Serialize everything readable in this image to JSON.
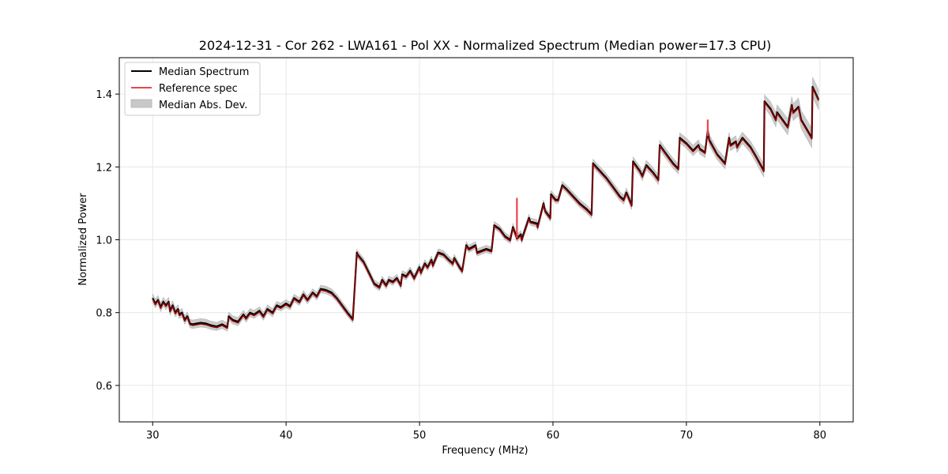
{
  "chart_data": {
    "type": "line",
    "title": "2024-12-31 - Cor 262 - LWA161 - Pol XX - Normalized Spectrum (Median power=17.3 CPU)",
    "xlabel": "Frequency (MHz)",
    "ylabel": "Normalized Power",
    "xlim": [
      27.5,
      82.5
    ],
    "ylim": [
      0.5,
      1.5
    ],
    "xticks": [
      30,
      40,
      50,
      60,
      70,
      80
    ],
    "yticks": [
      0.6,
      0.8,
      1.0,
      1.2,
      1.4
    ],
    "xtick_labels": [
      "30",
      "40",
      "50",
      "60",
      "70",
      "80"
    ],
    "ytick_labels": [
      "0.6",
      "0.8",
      "1.0",
      "1.2",
      "1.4"
    ],
    "grid": true,
    "legend_position": "top-left",
    "legend": [
      {
        "label": "Median Spectrum",
        "kind": "line",
        "color": "#000000"
      },
      {
        "label": "Reference spec",
        "kind": "line",
        "color": "#e8474c"
      },
      {
        "label": "Median Abs. Dev.",
        "kind": "band",
        "color": "#c8c8c8"
      }
    ],
    "mad_halfwidth": [
      [
        30,
        0.012
      ],
      [
        45,
        0.01
      ],
      [
        60,
        0.01
      ],
      [
        75,
        0.016
      ],
      [
        80,
        0.028
      ]
    ],
    "series": [
      {
        "name": "Median Spectrum",
        "x": [
          30.0,
          30.2,
          30.4,
          30.6,
          30.8,
          31.0,
          31.2,
          31.3,
          31.5,
          31.7,
          31.9,
          32.0,
          32.2,
          32.4,
          32.6,
          32.8,
          33.0,
          33.3,
          33.6,
          34.0,
          34.4,
          34.8,
          35.2,
          35.6,
          35.7,
          36.0,
          36.4,
          36.8,
          37.0,
          37.3,
          37.6,
          38.0,
          38.3,
          38.6,
          39.0,
          39.3,
          39.6,
          40.0,
          40.3,
          40.6,
          41.0,
          41.3,
          41.6,
          42.0,
          42.3,
          42.6,
          43.0,
          43.4,
          43.8,
          44.2,
          44.6,
          45.0,
          45.3,
          45.35,
          45.8,
          46.2,
          46.6,
          47.0,
          47.2,
          47.5,
          47.7,
          48.0,
          48.3,
          48.6,
          48.7,
          49.0,
          49.3,
          49.6,
          50.0,
          50.1,
          50.4,
          50.6,
          50.9,
          51.0,
          51.4,
          51.8,
          52.2,
          52.5,
          52.6,
          53.0,
          53.2,
          53.5,
          53.7,
          54.2,
          54.3,
          55.0,
          55.4,
          55.6,
          56.0,
          56.4,
          56.8,
          57.0,
          57.3,
          57.6,
          57.65,
          58.2,
          58.3,
          58.8,
          58.85,
          59.3,
          59.4,
          59.8,
          59.85,
          60.2,
          60.4,
          60.7,
          61.0,
          61.5,
          62.0,
          62.5,
          62.9,
          63.0,
          63.5,
          64.0,
          64.5,
          65.0,
          65.3,
          65.5,
          65.9,
          66.0,
          66.5,
          66.7,
          67.0,
          67.5,
          67.9,
          68.0,
          68.5,
          69.0,
          69.4,
          69.5,
          70.0,
          70.5,
          70.9,
          71.0,
          71.4,
          71.6,
          71.7,
          72.3,
          72.9,
          73.2,
          73.3,
          73.7,
          73.8,
          74.2,
          74.8,
          75.2,
          75.8,
          75.85,
          76.3,
          76.7,
          76.8,
          77.2,
          77.6,
          77.9,
          78.0,
          78.4,
          78.6,
          79.0,
          79.4,
          79.45,
          79.9
        ],
        "values": [
          0.84,
          0.825,
          0.835,
          0.815,
          0.83,
          0.82,
          0.83,
          0.805,
          0.82,
          0.8,
          0.81,
          0.795,
          0.8,
          0.78,
          0.79,
          0.77,
          0.768,
          0.77,
          0.772,
          0.77,
          0.765,
          0.762,
          0.768,
          0.76,
          0.79,
          0.78,
          0.775,
          0.795,
          0.785,
          0.8,
          0.795,
          0.805,
          0.79,
          0.81,
          0.8,
          0.82,
          0.815,
          0.825,
          0.818,
          0.84,
          0.83,
          0.85,
          0.835,
          0.855,
          0.845,
          0.865,
          0.862,
          0.855,
          0.84,
          0.82,
          0.8,
          0.782,
          0.965,
          0.96,
          0.94,
          0.91,
          0.88,
          0.87,
          0.89,
          0.875,
          0.89,
          0.885,
          0.895,
          0.875,
          0.905,
          0.9,
          0.915,
          0.895,
          0.925,
          0.91,
          0.935,
          0.925,
          0.945,
          0.93,
          0.965,
          0.96,
          0.945,
          0.935,
          0.95,
          0.925,
          0.915,
          0.985,
          0.975,
          0.985,
          0.965,
          0.975,
          0.97,
          1.04,
          1.03,
          1.01,
          1.0,
          1.035,
          1.005,
          1.015,
          1.0,
          1.06,
          1.05,
          1.045,
          1.035,
          1.1,
          1.08,
          1.06,
          1.125,
          1.11,
          1.11,
          1.15,
          1.14,
          1.12,
          1.1,
          1.085,
          1.07,
          1.21,
          1.19,
          1.17,
          1.145,
          1.12,
          1.11,
          1.13,
          1.095,
          1.215,
          1.19,
          1.175,
          1.205,
          1.185,
          1.165,
          1.26,
          1.235,
          1.21,
          1.195,
          1.28,
          1.265,
          1.245,
          1.26,
          1.25,
          1.24,
          1.3,
          1.275,
          1.235,
          1.21,
          1.28,
          1.26,
          1.27,
          1.255,
          1.28,
          1.255,
          1.23,
          1.19,
          1.38,
          1.36,
          1.33,
          1.35,
          1.33,
          1.31,
          1.37,
          1.35,
          1.365,
          1.33,
          1.305,
          1.28,
          1.42,
          1.385
        ]
      },
      {
        "name": "Reference spec",
        "offset": -0.003,
        "spikes": [
          {
            "x": 57.3,
            "from": 1.005,
            "to": 1.115
          },
          {
            "x": 71.6,
            "from": 1.285,
            "to": 1.33
          }
        ]
      }
    ]
  }
}
